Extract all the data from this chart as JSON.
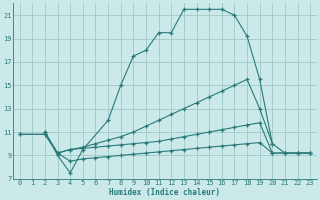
{
  "xlabel": "Humidex (Indice chaleur)",
  "bg_color": "#cce9e9",
  "grid_color": "#9dc8c8",
  "line_color": "#2a7a7a",
  "xlim": [
    -0.5,
    23.5
  ],
  "ylim": [
    7,
    22
  ],
  "xticks": [
    0,
    1,
    2,
    3,
    4,
    5,
    6,
    7,
    8,
    9,
    10,
    11,
    12,
    13,
    14,
    15,
    16,
    17,
    18,
    19,
    20,
    21,
    22,
    23
  ],
  "yticks": [
    7,
    9,
    11,
    13,
    15,
    17,
    19,
    21
  ],
  "curve1_x": [
    2,
    3,
    4,
    5,
    7,
    8,
    9,
    10,
    11,
    12,
    13,
    14,
    15,
    16,
    17,
    18,
    19,
    20
  ],
  "curve1_y": [
    11,
    9,
    7.5,
    9.5,
    12,
    15,
    17.5,
    18,
    19.5,
    19.5,
    21.5,
    21.5,
    21.5,
    21.5,
    21,
    19.2,
    15.5,
    10
  ],
  "curve2_x": [
    2,
    3,
    4,
    5,
    6,
    7,
    8,
    9,
    10,
    11,
    12,
    13,
    14,
    15,
    16,
    17,
    18,
    19,
    20,
    21,
    22,
    23
  ],
  "curve2_y": [
    11,
    9.2,
    9.5,
    9.7,
    10,
    10.3,
    10.6,
    11,
    11.5,
    12,
    12.5,
    13,
    13.5,
    14,
    14.5,
    15,
    15.5,
    13,
    10,
    9.2,
    9.2,
    9.2
  ],
  "curve3_x": [
    0,
    2,
    3,
    4,
    5,
    6,
    7,
    8,
    9,
    10,
    11,
    12,
    13,
    14,
    15,
    16,
    17,
    18,
    19,
    20,
    21,
    22,
    23
  ],
  "curve3_y": [
    10.8,
    10.8,
    9.2,
    9.5,
    9.6,
    9.7,
    9.8,
    9.9,
    10,
    10.1,
    10.2,
    10.4,
    10.6,
    10.8,
    11,
    11.2,
    11.4,
    11.6,
    11.8,
    9.2,
    9.2,
    9.2,
    9.2
  ],
  "curve4_x": [
    0,
    2,
    3,
    4,
    5,
    6,
    7,
    8,
    9,
    10,
    11,
    12,
    13,
    14,
    15,
    16,
    17,
    18,
    19,
    20,
    21,
    22,
    23
  ],
  "curve4_y": [
    10.8,
    10.8,
    9.2,
    8.5,
    8.7,
    8.8,
    8.9,
    9.0,
    9.1,
    9.2,
    9.3,
    9.4,
    9.5,
    9.6,
    9.7,
    9.8,
    9.9,
    10,
    10.1,
    9.2,
    9.2,
    9.2,
    9.2
  ]
}
